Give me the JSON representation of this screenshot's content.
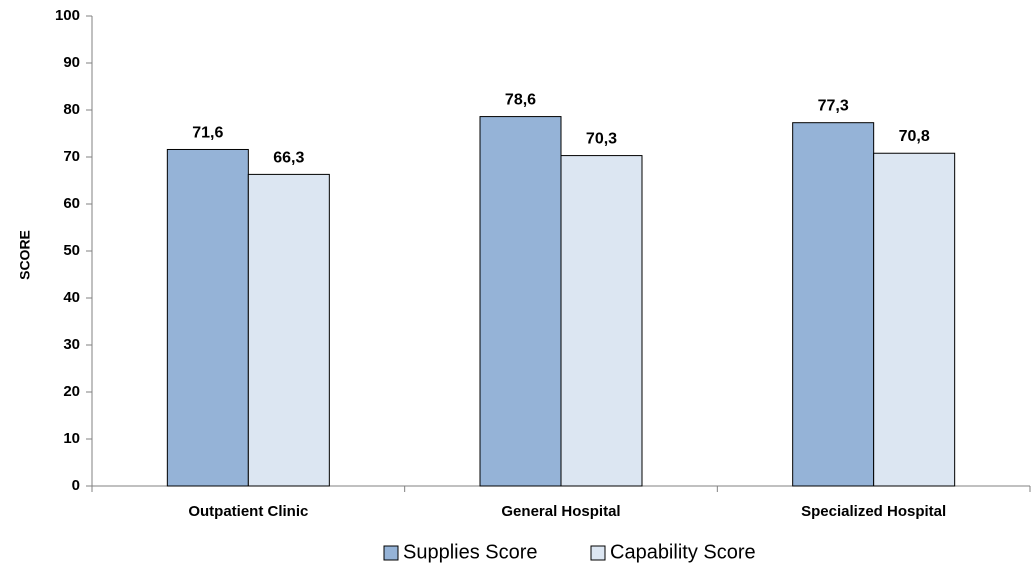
{
  "chart_data": {
    "type": "bar",
    "title": "",
    "xlabel": "",
    "ylabel": "SCORE",
    "ylim": [
      0,
      100
    ],
    "yticks": [
      0,
      10,
      20,
      30,
      40,
      50,
      60,
      70,
      80,
      90,
      100
    ],
    "categories": [
      "Outpatient Clinic",
      "General Hospital",
      "Specialized Hospital"
    ],
    "series": [
      {
        "name": "Supplies Score",
        "values": [
          71.6,
          78.6,
          77.3
        ],
        "labels": [
          "71,6",
          "78,6",
          "77,3"
        ],
        "color": "#95B3D7"
      },
      {
        "name": "Capability Score",
        "values": [
          66.3,
          70.3,
          70.8
        ],
        "labels": [
          "66,3",
          "70,3",
          "70,8"
        ],
        "color": "#DCE6F2"
      }
    ],
    "grid": false,
    "legend": "bottom"
  }
}
